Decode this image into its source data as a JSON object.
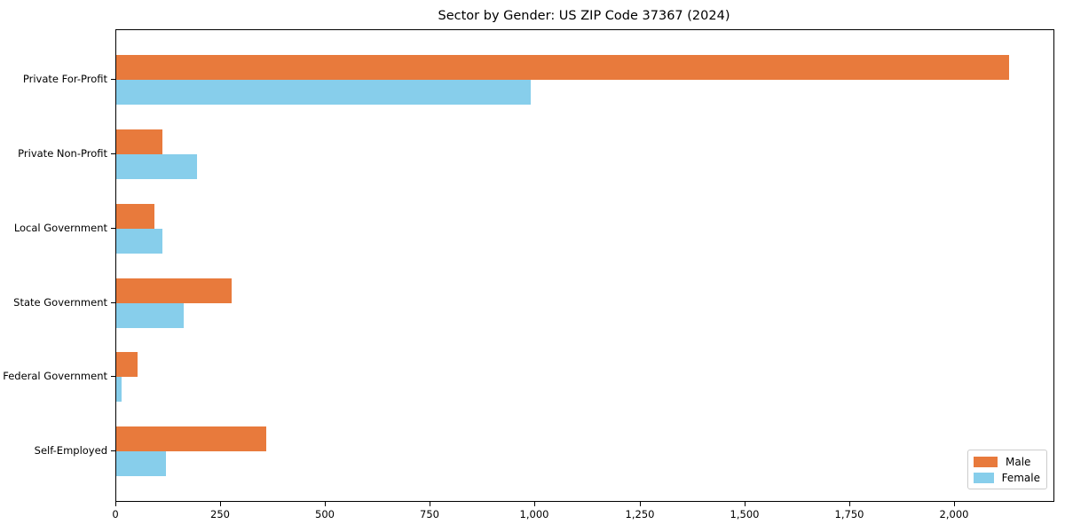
{
  "chart_data": {
    "type": "bar",
    "orientation": "horizontal",
    "title": "Sector by Gender: US ZIP Code 37367 (2024)",
    "categories": [
      "Private For-Profit",
      "Private Non-Profit",
      "Local Government",
      "State Government",
      "Federal Government",
      "Self-Employed"
    ],
    "series": [
      {
        "name": "Male",
        "color": "#e87a3c",
        "values": [
          2129,
          110,
          91,
          276,
          50,
          358
        ]
      },
      {
        "name": "Female",
        "color": "#87ceeb",
        "values": [
          989,
          193,
          111,
          160,
          13,
          118
        ]
      }
    ],
    "xlabel": "",
    "ylabel": "",
    "xlim": [
      0,
      2235
    ],
    "xticks": [
      0,
      250,
      500,
      750,
      1000,
      1250,
      1500,
      1750,
      2000
    ],
    "xtick_labels": [
      "0",
      "250",
      "500",
      "750",
      "1,000",
      "1,250",
      "1,500",
      "1,750",
      "2,000"
    ],
    "grid": false,
    "legend": {
      "position": "lower right",
      "labels": [
        "Male",
        "Female"
      ]
    },
    "colors": {
      "male": "#e87a3c",
      "female": "#87ceeb",
      "spine": "#000000",
      "legend_border": "#cccccc",
      "background": "#ffffff",
      "text": "#000000"
    }
  }
}
